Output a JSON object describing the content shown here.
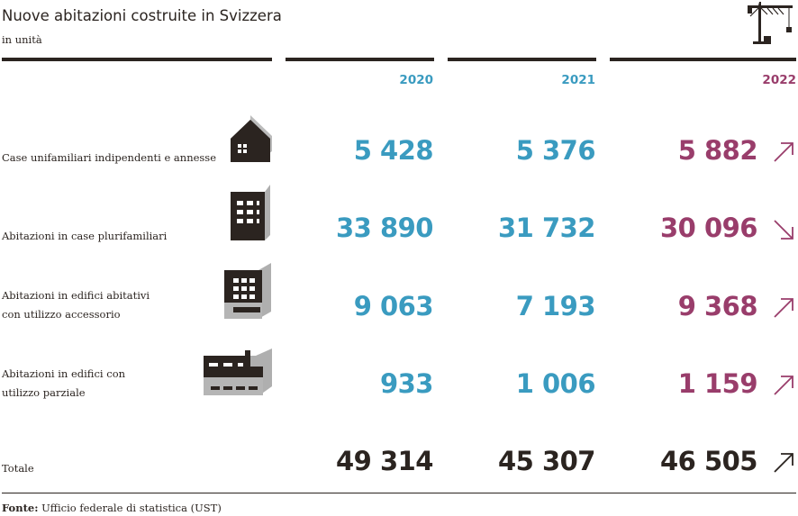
{
  "title": "Nuove abitazioni costruite in Svizzera",
  "subtitle": "in unità",
  "source_label": "Fonte:",
  "source_text": "Ufficio federale di statistica (UST)",
  "colors": {
    "past_years": "#3a9bc0",
    "latest_year": "#993d6b",
    "total": "#2b2420"
  },
  "chart_data": {
    "type": "table",
    "title": "Nuove abitazioni costruite in Svizzera",
    "subtitle": "in unità",
    "years": [
      "2020",
      "2021",
      "2022"
    ],
    "rows": [
      {
        "label": [
          "Case unifamiliari indipendenti e annesse"
        ],
        "icon": "single-family-house-icon",
        "values": [
          "5 428",
          "5 376",
          "5 882"
        ],
        "trend": "up"
      },
      {
        "label": [
          "Abitazioni in case plurifamiliari"
        ],
        "icon": "apartment-building-icon",
        "values": [
          "33 890",
          "31 732",
          "30 096"
        ],
        "trend": "down"
      },
      {
        "label": [
          "Abitazioni in edifici abitativi",
          "con utilizzo accessorio"
        ],
        "icon": "mixed-use-building-icon",
        "values": [
          "9 063",
          "7 193",
          "9 368"
        ],
        "trend": "up"
      },
      {
        "label": [
          "Abitazioni in edifici con",
          "utilizzo parziale"
        ],
        "icon": "partial-use-building-icon",
        "values": [
          "933",
          "1 006",
          "1 159"
        ],
        "trend": "up"
      }
    ],
    "total": {
      "label": "Totale",
      "values": [
        "49 314",
        "45 307",
        "46 505"
      ],
      "trend": "up"
    }
  }
}
